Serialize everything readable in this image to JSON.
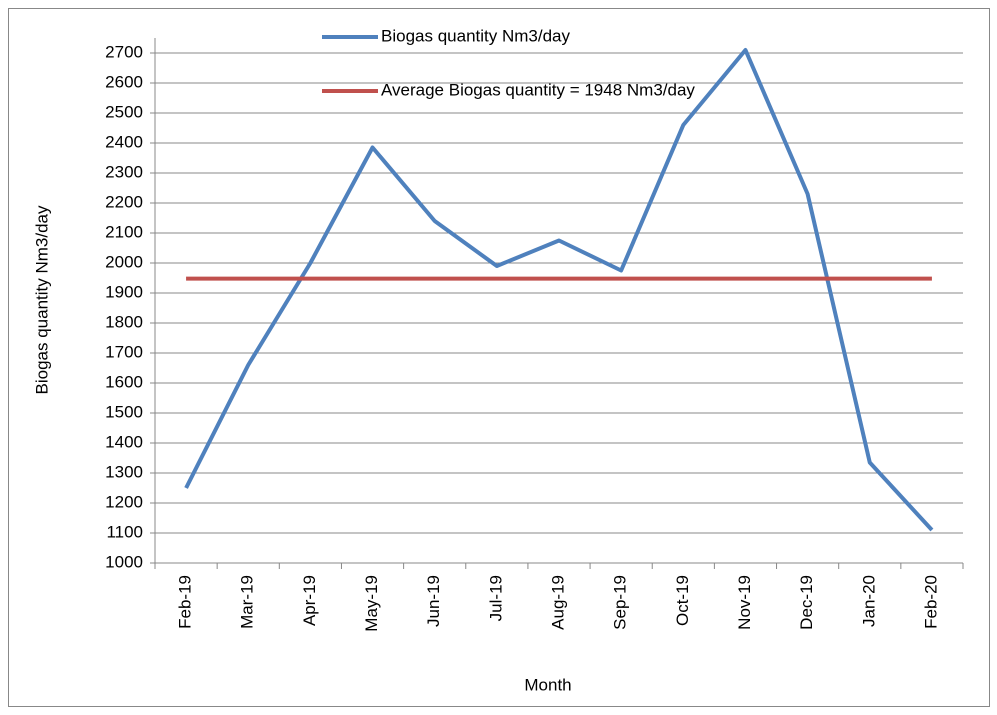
{
  "chart_data": {
    "type": "line",
    "x_label": "Month",
    "y_label": "Biogas quantity Nm3/day",
    "categories": [
      "Feb-19",
      "Mar-19",
      "Apr-19",
      "May-19",
      "Jun-19",
      "Jul-19",
      "Aug-19",
      "Sep-19",
      "Oct-19",
      "Nov-19",
      "Dec-19",
      "Jan-20",
      "Feb-20"
    ],
    "series": [
      {
        "name": "Biogas quantity Nm3/day",
        "color": "#4f81bd",
        "values": [
          1250,
          1660,
          2000,
          2385,
          2140,
          1990,
          2075,
          1975,
          2460,
          2710,
          2230,
          1335,
          1110
        ]
      },
      {
        "name": "Average Biogas quantity = 1948 Nm3/day",
        "color": "#c0504d",
        "values": [
          1948,
          1948,
          1948,
          1948,
          1948,
          1948,
          1948,
          1948,
          1948,
          1948,
          1948,
          1948,
          1948
        ]
      }
    ],
    "ylim": [
      1000,
      2750
    ],
    "yticks": [
      1000,
      1100,
      1200,
      1300,
      1400,
      1500,
      1600,
      1700,
      1800,
      1900,
      2000,
      2100,
      2200,
      2300,
      2400,
      2500,
      2600,
      2700
    ],
    "grid": true
  }
}
